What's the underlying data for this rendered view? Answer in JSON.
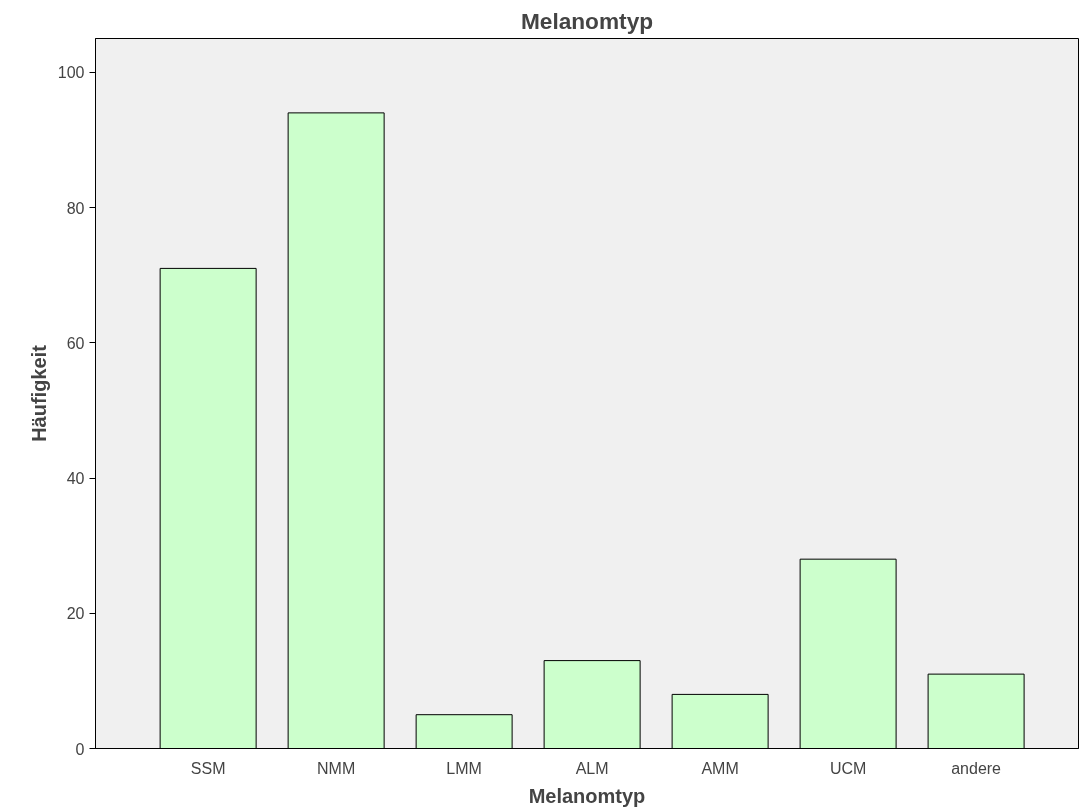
{
  "chart_data": {
    "type": "bar",
    "title": "Melanomtyp",
    "xlabel": "Melanomtyp",
    "ylabel": "Häufigkeit",
    "categories": [
      "SSM",
      "NMM",
      "LMM",
      "ALM",
      "AMM",
      "UCM",
      "andere"
    ],
    "values": [
      71,
      94,
      5,
      13,
      8,
      28,
      11
    ],
    "color": "#ccffcc",
    "ylim": [
      0,
      105
    ],
    "yticks": [
      0,
      20,
      40,
      60,
      80,
      100
    ],
    "grid": false
  }
}
